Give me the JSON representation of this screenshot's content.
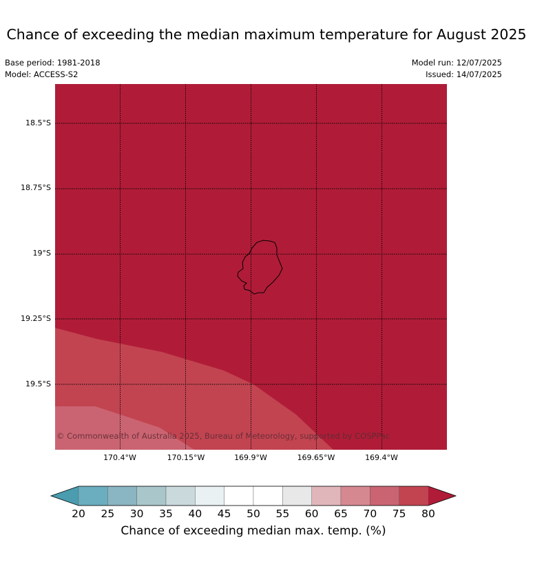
{
  "title": "Chance of exceeding the median maximum temperature for August 2025",
  "meta": {
    "base_period": "Base period: 1981-2018",
    "model": "Model: ACCESS-S2",
    "model_run": "Model run: 12/07/2025",
    "issued": "Issued: 14/07/2025"
  },
  "map": {
    "copyright": "© Commonwealth of Australia 2025, Bureau of Meteorology, supported by COSPPac",
    "lat_labels": [
      "18.5°S",
      "18.75°S",
      "19°S",
      "19.25°S",
      "19.5°S"
    ],
    "lon_labels": [
      "170.4°W",
      "170.15°W",
      "169.9°W",
      "169.65°W",
      "169.4°W"
    ],
    "island": "island-outline",
    "dominant_category": "80"
  },
  "colorbar": {
    "title": "Chance of exceeding median max. temp. (%)",
    "ticks": [
      "20",
      "25",
      "30",
      "35",
      "40",
      "45",
      "50",
      "55",
      "60",
      "65",
      "70",
      "75",
      "80"
    ],
    "colors": [
      "#4a9cae",
      "#6aaebf",
      "#8ab5c2",
      "#a9c6cb",
      "#c9d9dc",
      "#e9f1f2",
      "#ffffff",
      "#ffffff",
      "#e8e8e8",
      "#e0b6bb",
      "#d68891",
      "#cb6472",
      "#c24451",
      "#b01c38"
    ]
  }
}
